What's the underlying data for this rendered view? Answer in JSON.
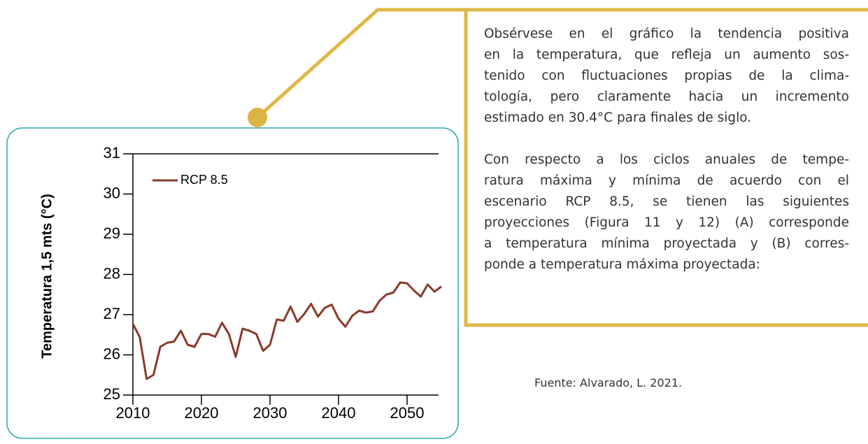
{
  "chart_data": {
    "type": "line",
    "ylabel": "Temperatura 1,5 mts (°C)",
    "x": [
      2010,
      2011,
      2012,
      2013,
      2014,
      2015,
      2016,
      2017,
      2018,
      2019,
      2020,
      2021,
      2022,
      2023,
      2024,
      2025,
      2026,
      2027,
      2028,
      2029,
      2030,
      2031,
      2032,
      2033,
      2034,
      2035,
      2036,
      2037,
      2038,
      2039,
      2040,
      2041,
      2042,
      2043,
      2044,
      2045,
      2046,
      2047,
      2048,
      2049,
      2050,
      2051,
      2052,
      2053,
      2054,
      2055
    ],
    "series": [
      {
        "name": "RCP 8.5",
        "color": "#8b3a2a",
        "values": [
          26.77,
          26.44,
          25.4,
          25.5,
          26.2,
          26.3,
          26.33,
          26.6,
          26.25,
          26.2,
          26.52,
          26.52,
          26.45,
          26.8,
          26.52,
          25.95,
          26.65,
          26.6,
          26.52,
          26.1,
          26.25,
          26.88,
          26.85,
          27.2,
          26.82,
          27.02,
          27.27,
          26.95,
          27.17,
          27.25,
          26.9,
          26.7,
          26.97,
          27.1,
          27.05,
          27.08,
          27.35,
          27.5,
          27.55,
          27.8,
          27.78,
          27.6,
          27.45,
          27.75,
          27.57,
          27.7
        ]
      }
    ],
    "xlim": [
      2010,
      2055
    ],
    "xticks": [
      2010,
      2020,
      2030,
      2040,
      2050
    ],
    "ylim": [
      25,
      31
    ],
    "yticks": [
      25,
      26,
      27,
      28,
      29,
      30,
      31
    ],
    "legend": "upper left"
  },
  "text": {
    "paragraphs": [
      [
        "Obsérvese en el gráfico la tendencia positiva",
        "en la temperatura, que refleja un aumento sos-",
        "tenido con fluctuaciones propias de la clima-",
        "tología, pero claramente hacia un incremento",
        "estimado en 30.4°C para finales de siglo."
      ],
      [
        "Con respecto a los ciclos anuales de tempe-",
        "ratura máxima y mínima de acuerdo con el",
        "escenario RCP 8.5, se tienen las siguientes",
        "proyecciones (Figura 11 y 12) (A) corresponde",
        "a temperatura mínima proyectada y (B) corres-",
        "ponde a temperatura máxima proyectada:"
      ]
    ],
    "source": "Fuente: Alvarado, L. 2021."
  }
}
